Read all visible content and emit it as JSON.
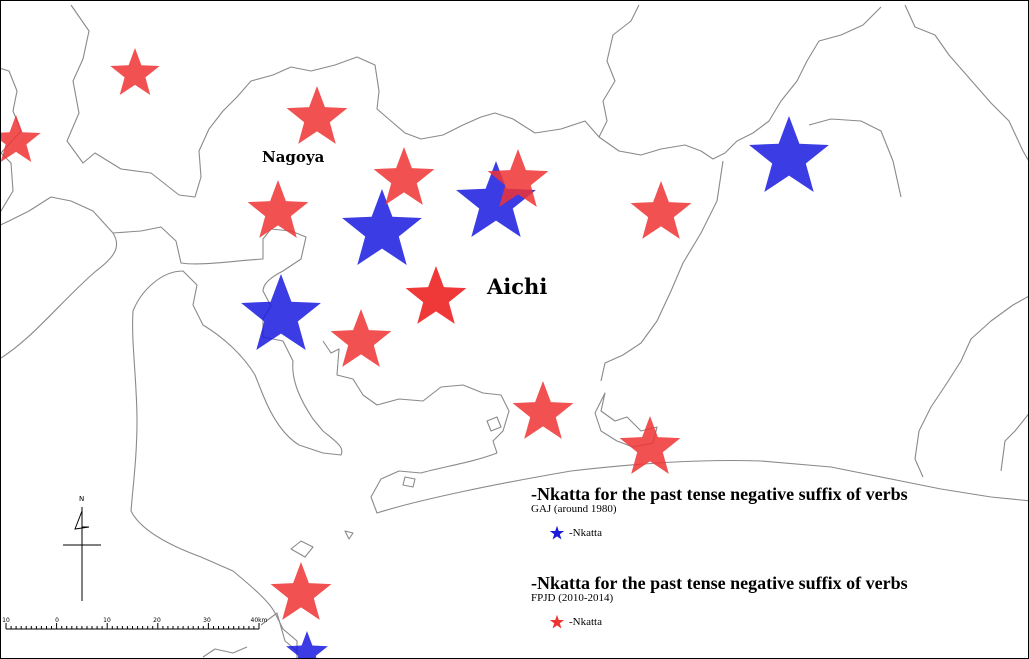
{
  "map": {
    "labels": {
      "nagoya": "Nagoya",
      "aichi": "Aichi"
    },
    "legends": [
      {
        "title": "-Nkatta for the past tense negative suffix of verbs",
        "source": "GAJ (around 1980)",
        "item_label": "-Nkatta",
        "color": "#1a1adf"
      },
      {
        "title": "-Nkatta for the past tense negative suffix of verbs",
        "source": "FPJD (2010-2014)",
        "item_label": "-Nkatta",
        "color": "#ee3333"
      }
    ],
    "compass": {
      "north_label": "N"
    },
    "scale_bar": {
      "ticks": [
        "10",
        "0",
        "10",
        "20",
        "30",
        "40km"
      ]
    },
    "colors": {
      "gaj_marker": "#1a1adf",
      "fpjd_marker": "#ee3333",
      "boundary": "#888888"
    }
  }
}
